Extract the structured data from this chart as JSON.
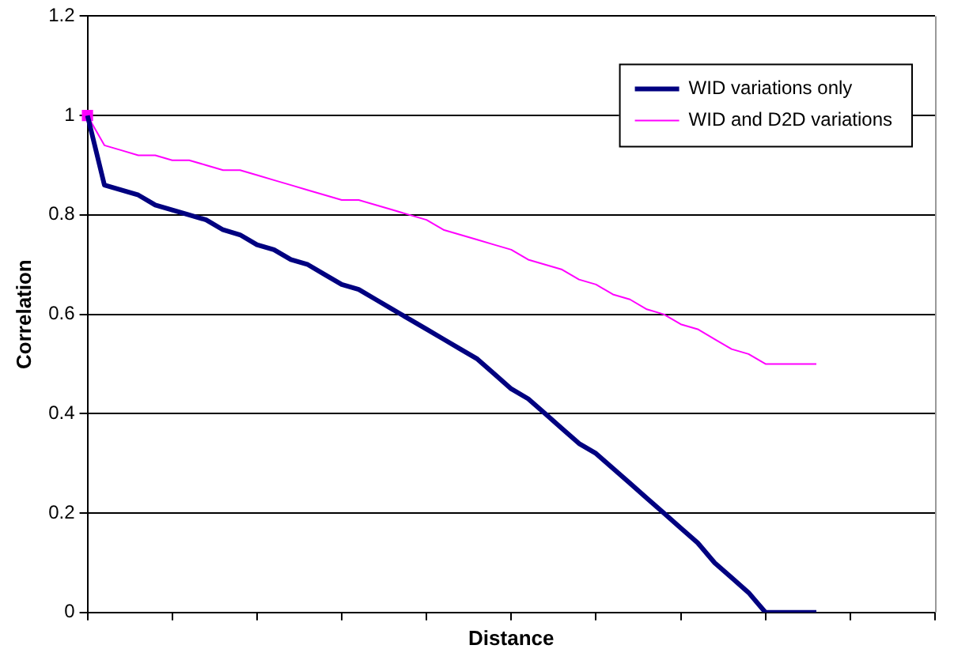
{
  "chart_data": {
    "type": "line",
    "xlabel": "Distance",
    "ylabel": "Correlation",
    "categories": [
      null,
      null,
      null,
      null,
      null,
      null,
      null,
      null,
      null,
      null,
      null,
      null,
      null,
      null,
      null,
      null,
      null,
      null,
      null,
      null,
      null,
      null,
      null,
      null,
      null,
      null,
      null,
      null,
      null,
      null,
      null,
      null,
      null,
      null,
      null,
      null,
      null,
      null,
      null,
      null,
      null,
      null,
      null,
      null,
      null,
      null,
      null,
      null,
      null,
      null,
      null
    ],
    "series": [
      {
        "name": "WID variations only",
        "color": "#000080",
        "values": [
          1,
          0.86,
          0.85,
          0.84,
          0.82,
          0.81,
          0.8,
          0.79,
          0.77,
          0.76,
          0.74,
          0.73,
          0.71,
          0.7,
          0.68,
          0.66,
          0.65,
          0.63,
          0.61,
          0.59,
          0.57,
          0.55,
          0.53,
          0.51,
          0.48,
          0.45,
          0.43,
          0.4,
          0.37,
          0.34,
          0.32,
          0.29,
          0.26,
          0.23,
          0.2,
          0.17,
          0.14,
          0.1,
          0.07,
          0.04,
          0,
          0,
          0,
          0,
          null,
          null,
          null,
          null,
          null,
          null,
          null
        ]
      },
      {
        "name": "WID and D2D variations",
        "color": "#ff00ff",
        "values": [
          1,
          0.94,
          0.93,
          0.92,
          0.92,
          0.91,
          0.91,
          0.9,
          0.89,
          0.89,
          0.88,
          0.87,
          0.86,
          0.85,
          0.84,
          0.83,
          0.83,
          0.82,
          0.81,
          0.8,
          0.79,
          0.77,
          0.76,
          0.75,
          0.74,
          0.73,
          0.71,
          0.7,
          0.69,
          0.67,
          0.66,
          0.64,
          0.63,
          0.61,
          0.6,
          0.58,
          0.57,
          0.55,
          0.53,
          0.52,
          0.5,
          0.5,
          0.5,
          0.5,
          null,
          null,
          null,
          null,
          null,
          null,
          null
        ]
      },
      {
        "type": "scatter",
        "color": "#ff00ff",
        "marker": "square",
        "values": [
          1,
          null,
          null,
          null,
          null,
          null,
          null,
          null,
          null,
          null,
          null,
          null,
          null,
          null,
          null,
          null,
          null,
          null,
          null,
          null,
          null,
          null,
          null,
          null,
          null,
          null,
          null,
          null,
          null,
          null,
          null,
          null,
          null,
          null,
          null,
          null,
          null,
          null,
          null,
          null,
          null,
          null,
          null,
          null,
          null,
          null,
          null,
          null,
          null,
          null,
          null
        ]
      }
    ],
    "ylim": [
      0,
      1.2
    ],
    "yticks": [
      0,
      0.2,
      0.4,
      0.6,
      0.8,
      1,
      1.2
    ],
    "grid": "y",
    "legend": "top right",
    "tick_labels": "y"
  }
}
